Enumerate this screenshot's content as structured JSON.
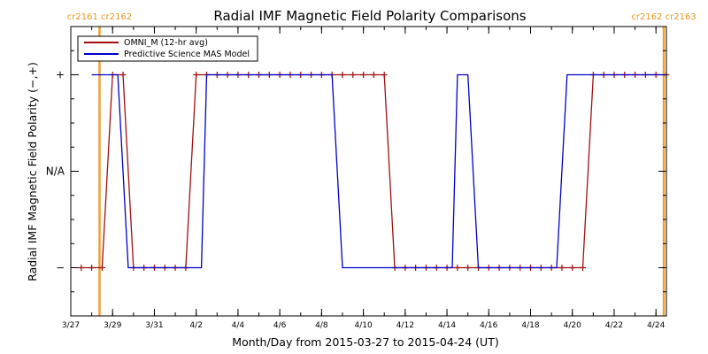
{
  "chart_data": {
    "type": "line",
    "title": "Radial IMF Magnetic Field Polarity Comparisons",
    "xlabel": "Month/Day from 2015-03-27 to 2015-04-24 (UT)",
    "ylabel": "Radial IMF Magnetic Field Polarity (−,+)",
    "xlim": [
      "2015-03-27",
      "2015-04-24T12:00"
    ],
    "ylim": [
      -1.5,
      1.5
    ],
    "x_tick_labels": [
      "3/27",
      "3/29",
      "3/31",
      "4/2",
      "4/4",
      "4/6",
      "4/8",
      "4/10",
      "4/12",
      "4/14",
      "4/16",
      "4/18",
      "4/20",
      "4/22",
      "4/24"
    ],
    "y_tick_labels": [
      {
        "value": 1,
        "label": "+"
      },
      {
        "value": 0,
        "label": "N/A"
      },
      {
        "value": -1,
        "label": "−"
      }
    ],
    "legend": {
      "position": "top-left",
      "entries": [
        {
          "name": "OMNI_M (12-hr avg)",
          "color": "#a01010"
        },
        {
          "name": "Predictive Science MAS Model",
          "color": "#0000cc"
        }
      ]
    },
    "carrington_rotations": [
      {
        "date": "2015-03-28T09:00",
        "labels": [
          "cr2161",
          "cr2162"
        ]
      },
      {
        "date": "2015-04-24T09:00",
        "labels": [
          "cr2162",
          "cr2163"
        ]
      }
    ],
    "series": [
      {
        "name": "OMNI_M (12-hr avg)",
        "color": "#a01010",
        "markers": true,
        "points": [
          [
            "2015-03-27T12:00",
            -1
          ],
          [
            "2015-03-28T00:00",
            -1
          ],
          [
            "2015-03-28T12:00",
            -1
          ],
          [
            "2015-03-29T00:00",
            1
          ],
          [
            "2015-03-29T12:00",
            1
          ],
          [
            "2015-03-30T00:00",
            -1
          ],
          [
            "2015-03-30T12:00",
            -1
          ],
          [
            "2015-03-31T00:00",
            -1
          ],
          [
            "2015-03-31T12:00",
            -1
          ],
          [
            "2015-04-01T00:00",
            -1
          ],
          [
            "2015-04-01T12:00",
            -1
          ],
          [
            "2015-04-02T00:00",
            1
          ],
          [
            "2015-04-02T12:00",
            1
          ],
          [
            "2015-04-03T00:00",
            1
          ],
          [
            "2015-04-03T12:00",
            1
          ],
          [
            "2015-04-04T00:00",
            1
          ],
          [
            "2015-04-04T12:00",
            1
          ],
          [
            "2015-04-05T00:00",
            1
          ],
          [
            "2015-04-05T12:00",
            1
          ],
          [
            "2015-04-06T00:00",
            1
          ],
          [
            "2015-04-06T12:00",
            1
          ],
          [
            "2015-04-07T00:00",
            1
          ],
          [
            "2015-04-07T12:00",
            1
          ],
          [
            "2015-04-08T00:00",
            1
          ],
          [
            "2015-04-08T12:00",
            1
          ],
          [
            "2015-04-09T00:00",
            1
          ],
          [
            "2015-04-09T12:00",
            1
          ],
          [
            "2015-04-10T00:00",
            1
          ],
          [
            "2015-04-10T12:00",
            1
          ],
          [
            "2015-04-11T00:00",
            1
          ],
          [
            "2015-04-11T12:00",
            -1
          ],
          [
            "2015-04-12T00:00",
            -1
          ],
          [
            "2015-04-12T12:00",
            -1
          ],
          [
            "2015-04-13T00:00",
            -1
          ],
          [
            "2015-04-13T12:00",
            -1
          ],
          [
            "2015-04-14T00:00",
            -1
          ],
          [
            "2015-04-14T12:00",
            -1
          ],
          [
            "2015-04-15T00:00",
            -1
          ],
          [
            "2015-04-15T12:00",
            -1
          ],
          [
            "2015-04-16T00:00",
            -1
          ],
          [
            "2015-04-16T12:00",
            -1
          ],
          [
            "2015-04-17T00:00",
            -1
          ],
          [
            "2015-04-17T12:00",
            -1
          ],
          [
            "2015-04-18T00:00",
            -1
          ],
          [
            "2015-04-18T12:00",
            -1
          ],
          [
            "2015-04-19T00:00",
            -1
          ],
          [
            "2015-04-19T12:00",
            -1
          ],
          [
            "2015-04-20T00:00",
            -1
          ],
          [
            "2015-04-20T12:00",
            -1
          ],
          [
            "2015-04-21T00:00",
            1
          ],
          [
            "2015-04-21T12:00",
            1
          ],
          [
            "2015-04-22T00:00",
            1
          ],
          [
            "2015-04-22T12:00",
            1
          ],
          [
            "2015-04-23T00:00",
            1
          ],
          [
            "2015-04-23T12:00",
            1
          ],
          [
            "2015-04-24T00:00",
            1
          ],
          [
            "2015-04-24T12:00",
            1
          ]
        ]
      },
      {
        "name": "Predictive Science MAS Model",
        "color": "#0000cc",
        "markers": false,
        "points": [
          [
            "2015-03-28T00:00",
            1
          ],
          [
            "2015-03-29T06:00",
            1
          ],
          [
            "2015-03-29T18:00",
            -1
          ],
          [
            "2015-04-02T06:00",
            -1
          ],
          [
            "2015-04-02T12:00",
            1
          ],
          [
            "2015-04-08T12:00",
            1
          ],
          [
            "2015-04-09T00:00",
            -1
          ],
          [
            "2015-04-14T06:00",
            -1
          ],
          [
            "2015-04-14T12:00",
            1
          ],
          [
            "2015-04-15T00:00",
            1
          ],
          [
            "2015-04-15T12:00",
            -1
          ],
          [
            "2015-04-19T06:00",
            -1
          ],
          [
            "2015-04-19T18:00",
            1
          ],
          [
            "2015-04-24T12:00",
            1
          ]
        ]
      }
    ]
  }
}
